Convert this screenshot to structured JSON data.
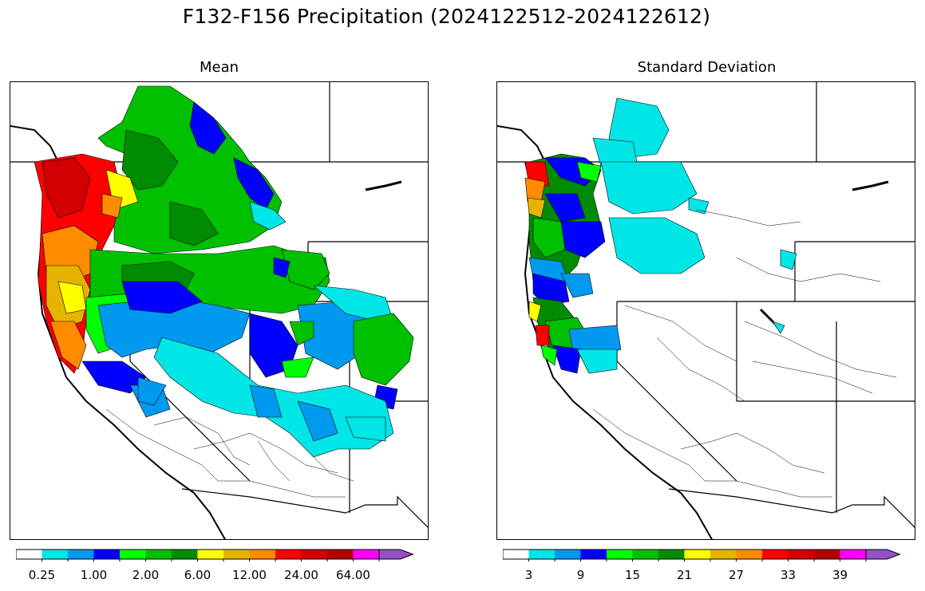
{
  "title": "F132-F156 Precipitation (2024122512-2024122612)",
  "panels": {
    "mean": {
      "title": "Mean",
      "colorbar_labels": [
        "0.25",
        "1.00",
        "2.00",
        "6.00",
        "12.00",
        "24.00",
        "64.00"
      ]
    },
    "std": {
      "title": "Standard Deviation",
      "colorbar_labels": [
        "3",
        "9",
        "15",
        "21",
        "27",
        "33",
        "39"
      ]
    }
  },
  "colorbar_colors": [
    "#ffffff",
    "#00e6e6",
    "#0099f0",
    "#0000ff",
    "#00ff00",
    "#00c000",
    "#008c00",
    "#ffff00",
    "#e6b400",
    "#ff8c00",
    "#ff0000",
    "#d20000",
    "#b40000",
    "#ff00ff",
    "#9650c8"
  ]
}
